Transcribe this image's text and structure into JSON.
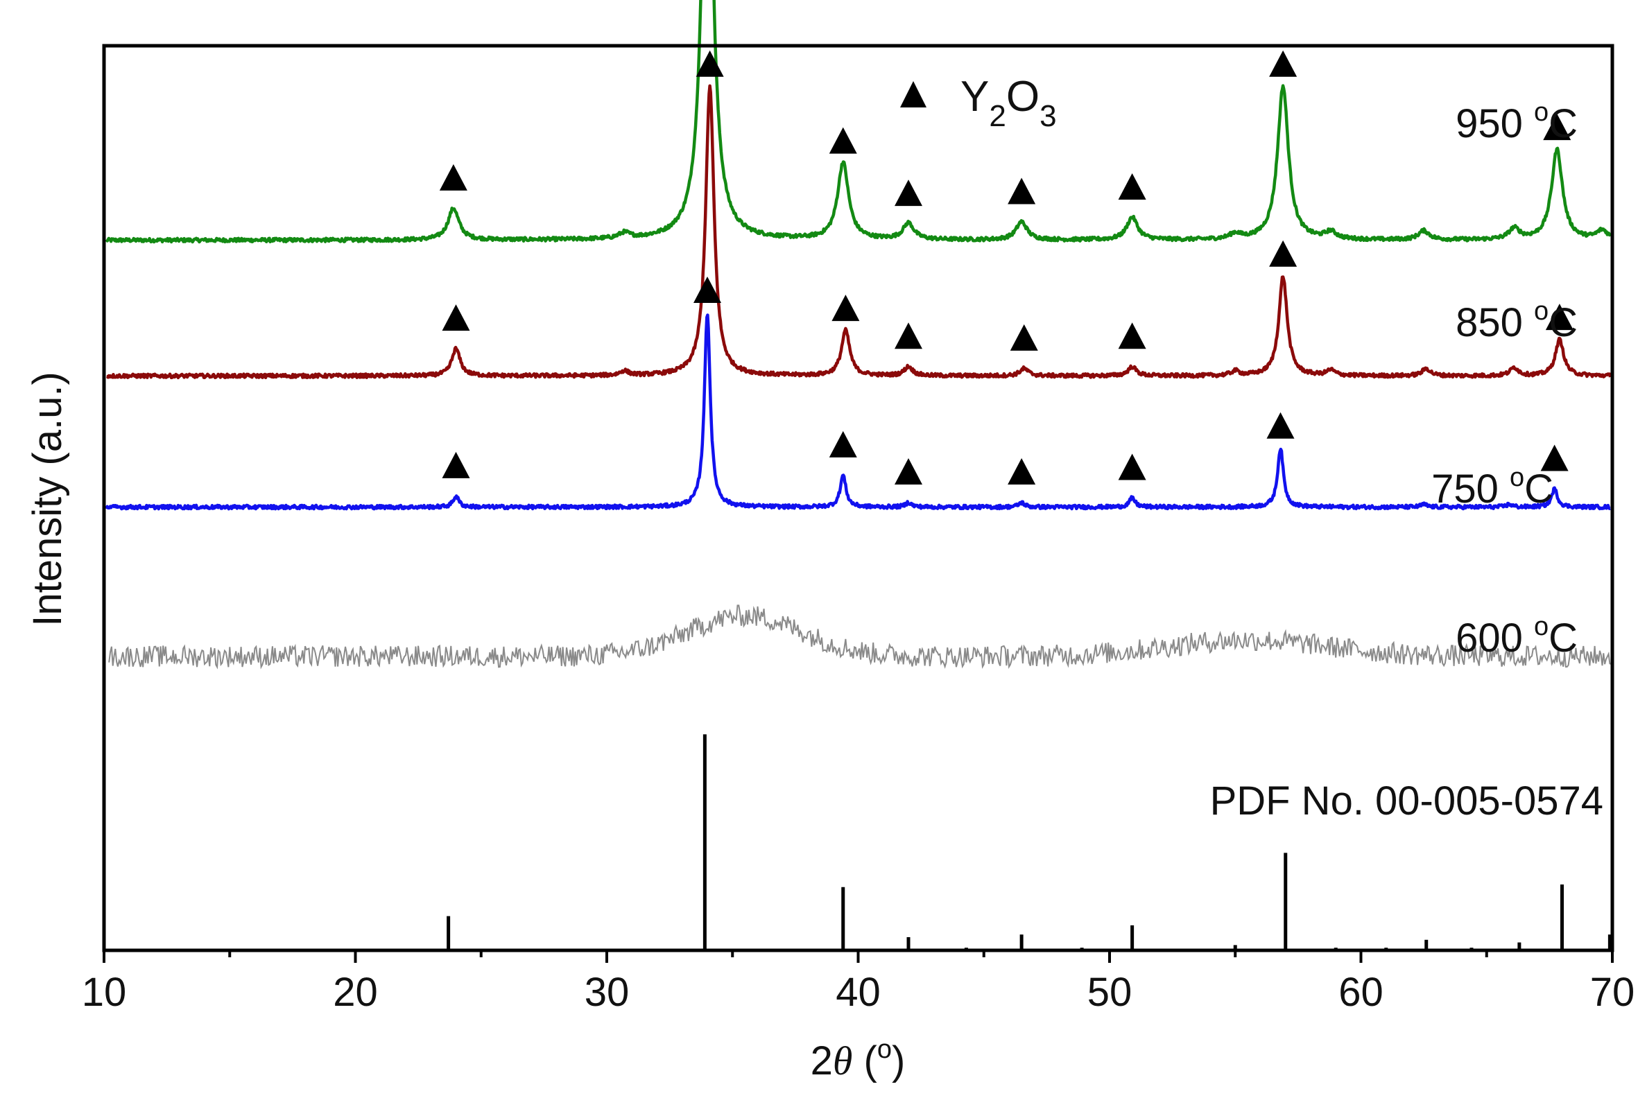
{
  "chart_data": {
    "type": "line",
    "xlabel_prefix": "2",
    "xlabel_var": "θ",
    "xlabel_suffix_open": " (",
    "xlabel_degree": "o",
    "xlabel_suffix_close": ")",
    "ylabel": "Intensity (a.u.)",
    "xlim": [
      10,
      70
    ],
    "x_ticks": [
      10,
      20,
      30,
      40,
      50,
      60,
      70
    ],
    "y_ticks_shown": false,
    "legend": {
      "marker": "triangle",
      "text_main": "Y",
      "sub1": "2",
      "text_mid": "O",
      "sub2": "3"
    },
    "series": [
      {
        "name": "950 °C",
        "label_num": "950 ",
        "label_deg": "o",
        "label_unit": "C",
        "color": "#138a13",
        "baseline": 0.785,
        "markers": true,
        "peaks": [
          [
            23.9,
            0.035
          ],
          [
            34.0,
            0.54
          ],
          [
            39.4,
            0.085
          ],
          [
            42.0,
            0.018
          ],
          [
            46.5,
            0.02
          ],
          [
            50.9,
            0.025
          ],
          [
            56.9,
            0.17
          ],
          [
            67.8,
            0.1
          ],
          [
            30.7,
            0.006
          ],
          [
            55.0,
            0.006
          ],
          [
            58.8,
            0.008
          ],
          [
            62.5,
            0.01
          ],
          [
            66.1,
            0.012
          ],
          [
            69.6,
            0.01
          ]
        ]
      },
      {
        "name": "850 °C",
        "label_num": "850 ",
        "label_deg": "o",
        "label_unit": "C",
        "color": "#8b0a0a",
        "baseline": 0.635,
        "markers": true,
        "peaks": [
          [
            24.0,
            0.03
          ],
          [
            34.1,
            0.32
          ],
          [
            39.5,
            0.05
          ],
          [
            42.0,
            0.01
          ],
          [
            46.6,
            0.008
          ],
          [
            50.9,
            0.01
          ],
          [
            56.9,
            0.11
          ],
          [
            67.9,
            0.04
          ],
          [
            30.7,
            0.005
          ],
          [
            55.0,
            0.005
          ],
          [
            58.8,
            0.006
          ],
          [
            62.6,
            0.008
          ],
          [
            66.1,
            0.009
          ]
        ]
      },
      {
        "name": "750 °C",
        "label_num": "750 ",
        "label_deg": "o",
        "label_unit": "C",
        "color": "#1111ee",
        "baseline": 0.49,
        "markers": true,
        "peaks": [
          [
            24.0,
            0.012
          ],
          [
            34.0,
            0.215
          ],
          [
            39.4,
            0.035
          ],
          [
            42.0,
            0.005
          ],
          [
            46.5,
            0.005
          ],
          [
            50.9,
            0.01
          ],
          [
            56.8,
            0.065
          ],
          [
            67.7,
            0.02
          ],
          [
            62.5,
            0.003
          ],
          [
            65.9,
            0.003
          ]
        ]
      },
      {
        "name": "600 °C",
        "label_num": "600 ",
        "label_deg": "o",
        "label_unit": "C",
        "color": "#8a8a8a",
        "baseline": 0.325,
        "markers": false,
        "peaks": []
      }
    ],
    "reference": {
      "name": "PDF No. 00-005-0574",
      "color": "#000000",
      "lines": [
        [
          23.7,
          0.13
        ],
        [
          33.9,
          0.82
        ],
        [
          39.4,
          0.24
        ],
        [
          42.0,
          0.05
        ],
        [
          44.3,
          0.01
        ],
        [
          46.5,
          0.06
        ],
        [
          48.9,
          0.01
        ],
        [
          50.9,
          0.095
        ],
        [
          55.0,
          0.02
        ],
        [
          57.0,
          0.37
        ],
        [
          59.0,
          0.01
        ],
        [
          61.0,
          0.01
        ],
        [
          62.6,
          0.04
        ],
        [
          64.4,
          0.01
        ],
        [
          66.3,
          0.03
        ],
        [
          68.0,
          0.25
        ],
        [
          69.9,
          0.06
        ]
      ]
    }
  }
}
